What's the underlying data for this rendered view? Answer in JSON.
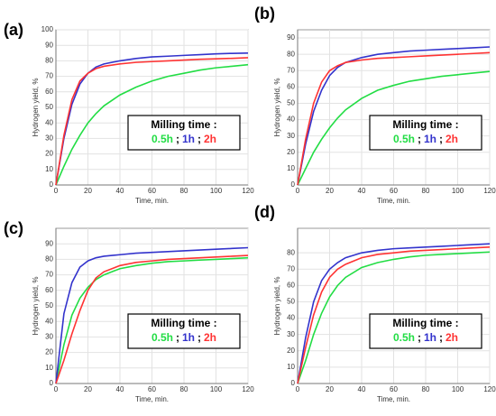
{
  "chart_data": [
    {
      "type": "line",
      "panel": "(a)",
      "xlabel": "Time, min.",
      "ylabel": "Hydrogen yield, %",
      "legend_title": "Milling time :",
      "legend_separator": ";",
      "x": [
        0,
        5,
        10,
        15,
        20,
        25,
        30,
        40,
        50,
        60,
        70,
        80,
        90,
        100,
        110,
        120
      ],
      "xlim": [
        0,
        120
      ],
      "xticks": [
        0,
        20,
        40,
        60,
        80,
        100,
        120
      ],
      "ylim": [
        0,
        100
      ],
      "yticks": [
        0,
        10,
        20,
        30,
        40,
        50,
        60,
        70,
        80,
        90,
        100
      ],
      "grid": true,
      "series": [
        {
          "name": "0.5h",
          "color": "#22dd44",
          "values": [
            0,
            12,
            23,
            32,
            40,
            46,
            51,
            58,
            63,
            67,
            70,
            72,
            74,
            75.5,
            76.5,
            77.5
          ]
        },
        {
          "name": "1h",
          "color": "#3333cc",
          "values": [
            0,
            30,
            52,
            65,
            72,
            76,
            78,
            80,
            81.5,
            82.5,
            83,
            83.5,
            84,
            84.5,
            84.8,
            85
          ]
        },
        {
          "name": "2h",
          "color": "#ff3333",
          "values": [
            0,
            32,
            55,
            67,
            72,
            75,
            76.5,
            78,
            79,
            79.5,
            80,
            80.5,
            81,
            81.3,
            81.6,
            82
          ]
        }
      ]
    },
    {
      "type": "line",
      "panel": "(b)",
      "xlabel": "Time, min.",
      "ylabel": "Hydrogen yield, %",
      "legend_title": "Milling time :",
      "legend_separator": ";",
      "x": [
        0,
        5,
        10,
        15,
        20,
        25,
        30,
        40,
        50,
        60,
        70,
        80,
        90,
        100,
        110,
        120
      ],
      "xlim": [
        0,
        120
      ],
      "xticks": [
        0,
        20,
        40,
        60,
        80,
        100,
        120
      ],
      "ylim": [
        0,
        95
      ],
      "yticks": [
        0,
        10,
        20,
        30,
        40,
        50,
        60,
        70,
        80,
        90
      ],
      "grid": true,
      "series": [
        {
          "name": "0.5h",
          "color": "#22dd44",
          "values": [
            0,
            10,
            20,
            28,
            35,
            41,
            46,
            53,
            58,
            61,
            63.5,
            65,
            66.5,
            67.5,
            68.5,
            69.5
          ]
        },
        {
          "name": "1h",
          "color": "#3333cc",
          "values": [
            0,
            25,
            45,
            58,
            67,
            72,
            75,
            78,
            80,
            81,
            82,
            82.5,
            83,
            83.5,
            84,
            84.5
          ]
        },
        {
          "name": "2h",
          "color": "#ff3333",
          "values": [
            0,
            28,
            50,
            63,
            70,
            73,
            75,
            76.5,
            77.5,
            78,
            78.5,
            79,
            79.5,
            80,
            80.5,
            81
          ]
        }
      ]
    },
    {
      "type": "line",
      "panel": "(c)",
      "xlabel": "Time, min.",
      "ylabel": "Hydrogen yield, %",
      "legend_title": "Milling time :",
      "legend_separator": ";",
      "x": [
        0,
        5,
        10,
        15,
        20,
        25,
        30,
        40,
        50,
        60,
        70,
        80,
        90,
        100,
        110,
        120
      ],
      "xlim": [
        0,
        120
      ],
      "xticks": [
        0,
        20,
        40,
        60,
        80,
        100,
        120
      ],
      "ylim": [
        0,
        100
      ],
      "yticks": [
        0,
        10,
        20,
        30,
        40,
        50,
        60,
        70,
        80,
        90
      ],
      "grid": true,
      "series": [
        {
          "name": "0.5h",
          "color": "#22dd44",
          "values": [
            0,
            25,
            44,
            55,
            62,
            67,
            70,
            74,
            76,
            77.5,
            78.5,
            79,
            79.5,
            80,
            80.5,
            81
          ]
        },
        {
          "name": "1h",
          "color": "#3333cc",
          "values": [
            0,
            45,
            65,
            75,
            79,
            81,
            82,
            83,
            84,
            84.5,
            85,
            85.5,
            86,
            86.5,
            87,
            87.5
          ]
        },
        {
          "name": "2h",
          "color": "#ff3333",
          "values": [
            0,
            15,
            32,
            47,
            60,
            68,
            72,
            76,
            78,
            79,
            80,
            80.5,
            81,
            81.5,
            82,
            82.5
          ]
        }
      ]
    },
    {
      "type": "line",
      "panel": "(d)",
      "xlabel": "Time, min.",
      "ylabel": "Hydrogen yield, %",
      "legend_title": "Milling time :",
      "legend_separator": ";",
      "x": [
        0,
        5,
        10,
        15,
        20,
        25,
        30,
        40,
        50,
        60,
        70,
        80,
        90,
        100,
        110,
        120
      ],
      "xlim": [
        0,
        120
      ],
      "xticks": [
        0,
        20,
        40,
        60,
        80,
        100,
        120
      ],
      "ylim": [
        0,
        95
      ],
      "yticks": [
        0,
        10,
        20,
        30,
        40,
        50,
        60,
        70,
        80
      ],
      "grid": true,
      "series": [
        {
          "name": "0.5h",
          "color": "#22dd44",
          "values": [
            0,
            14,
            30,
            43,
            53,
            60,
            65,
            71,
            74,
            76,
            77.5,
            78.5,
            79,
            79.5,
            80,
            80.5
          ]
        },
        {
          "name": "1h",
          "color": "#3333cc",
          "values": [
            0,
            28,
            50,
            63,
            70,
            74,
            77,
            80,
            81.5,
            82.5,
            83,
            83.5,
            84,
            84.5,
            85,
            85.5
          ]
        },
        {
          "name": "2h",
          "color": "#ff3333",
          "values": [
            0,
            22,
            42,
            56,
            65,
            70,
            73,
            77,
            79,
            80,
            81,
            81.5,
            82,
            82.5,
            83,
            83.5
          ]
        }
      ]
    }
  ]
}
